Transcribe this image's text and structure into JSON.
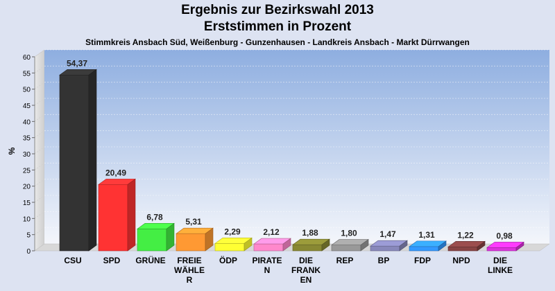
{
  "chart_data": {
    "type": "bar",
    "title": "Ergebnis zur Bezirkswahl 2013",
    "subtitle": "Erststimmen in Prozent",
    "caption": "Stimmkreis Ansbach Süd, Weißenburg - Gunzenhausen - Landkreis Ansbach - Markt Dürrwangen",
    "ylabel": "%",
    "ylim": [
      0,
      60
    ],
    "yticks": [
      0,
      5,
      10,
      15,
      20,
      25,
      30,
      35,
      40,
      45,
      50,
      55,
      60
    ],
    "grid": true,
    "categories": [
      [
        "CSU"
      ],
      [
        "SPD"
      ],
      [
        "GRÜNE"
      ],
      [
        "FREIE",
        "WÄHLE",
        "R"
      ],
      [
        "ÖDP"
      ],
      [
        "PIRATE",
        "N"
      ],
      [
        "DIE",
        "FRANK",
        "EN"
      ],
      [
        "REP"
      ],
      [
        "BP"
      ],
      [
        "FDP"
      ],
      [
        "NPD"
      ],
      [
        "DIE",
        "LINKE"
      ]
    ],
    "values": [
      54.37,
      20.49,
      6.78,
      5.31,
      2.29,
      2.12,
      1.88,
      1.8,
      1.47,
      1.31,
      1.22,
      0.98
    ],
    "value_labels": [
      "54,37",
      "20,49",
      "6,78",
      "5,31",
      "2,29",
      "2,12",
      "1,88",
      "1,80",
      "1,47",
      "1,31",
      "1,22",
      "0,98"
    ],
    "colors": [
      "#333333",
      "#ff3333",
      "#44ee44",
      "#ff9933",
      "#ffff33",
      "#ff88cc",
      "#888833",
      "#999999",
      "#8888bb",
      "#3399ff",
      "#884444",
      "#dd33dd"
    ]
  }
}
